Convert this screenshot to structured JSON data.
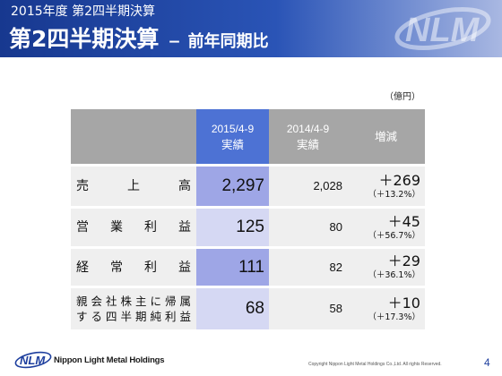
{
  "header": {
    "subtitle": "2015年度 第2四半期決算",
    "title_main": "第2四半期決算",
    "title_separator": "−",
    "title_sub": "前年同期比",
    "logo_text": "NLM"
  },
  "unit": "（億円）",
  "table": {
    "columns": [
      {
        "period": "2015/4-9",
        "type": "実績"
      },
      {
        "period": "2014/4-9",
        "type": "実績"
      },
      {
        "label": "増減"
      }
    ],
    "rows": [
      {
        "label_lines": [
          "売上高"
        ],
        "current": "2,297",
        "previous": "2,028",
        "change": "＋269",
        "change_pct": "（＋13.2%）"
      },
      {
        "label_lines": [
          "営業利益"
        ],
        "current": "125",
        "previous": "80",
        "change": "＋45",
        "change_pct": "（＋56.7%）"
      },
      {
        "label_lines": [
          "経常利益"
        ],
        "current": "111",
        "previous": "82",
        "change": "＋29",
        "change_pct": "（＋36.1%）"
      },
      {
        "label_lines": [
          "親会社株主に帰属",
          "する四半期純利益"
        ],
        "current": "68",
        "previous": "58",
        "change": "＋10",
        "change_pct": "（＋17.3%）"
      }
    ]
  },
  "footer": {
    "logo_text": "NLM",
    "company": "Nippon Light Metal Holdings",
    "copyright": "Copyright Nippon Light Metal Holdings Co.,Ltd. All rights Reserved.",
    "page": "4"
  },
  "colors": {
    "banner_dark": "#17388f",
    "banner_light": "#a9b8e2",
    "current_header": "#4d72d4",
    "current_strong": "#9ea6e6",
    "current_light": "#d5d8f3",
    "header_gray": "#a6a6a6",
    "cell_gray": "#efefef",
    "brand_blue": "#1e3f9e"
  }
}
